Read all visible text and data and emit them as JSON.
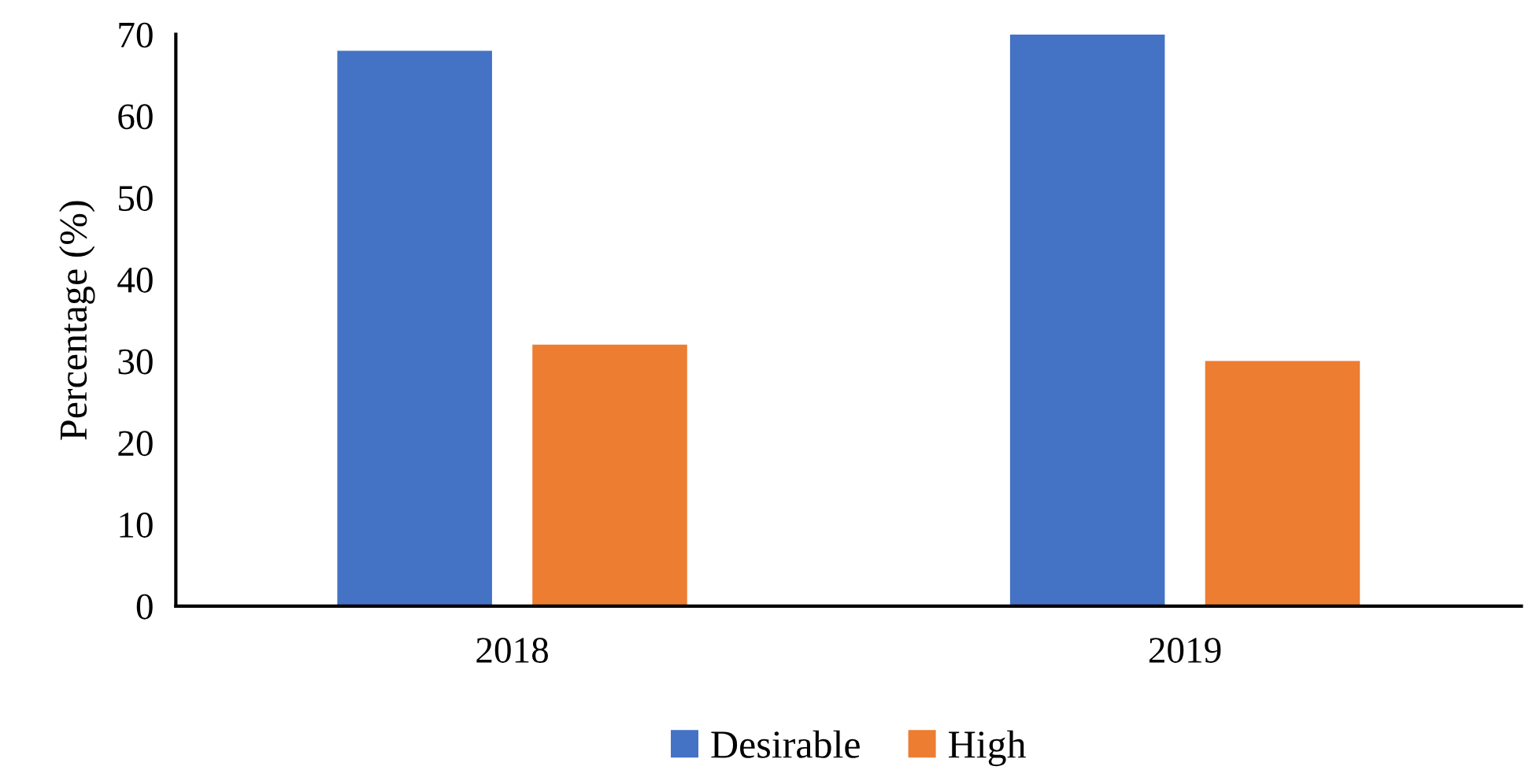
{
  "chart_data": {
    "type": "bar",
    "ylabel": "Percentage (%)",
    "categories": [
      "2018",
      "2019"
    ],
    "series": [
      {
        "name": "Desirable",
        "color": "#4472c4",
        "values": [
          68,
          70
        ]
      },
      {
        "name": "High",
        "color": "#ed7d31",
        "values": [
          32,
          30
        ]
      }
    ],
    "ylim": [
      0,
      70
    ],
    "yticks": [
      0,
      10,
      20,
      30,
      40,
      50,
      60,
      70
    ],
    "grid": false,
    "legend": "bottom"
  }
}
